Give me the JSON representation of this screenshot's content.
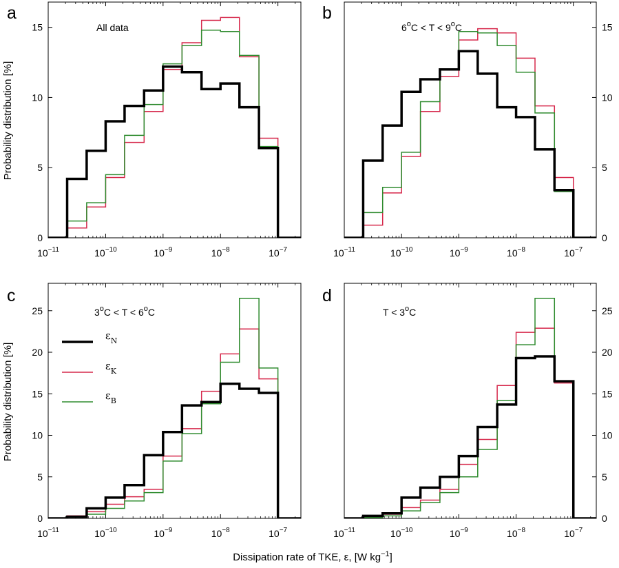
{
  "figure": {
    "xlabel_main": "Dissipation rate of TKE, ε, [W kg",
    "xlabel_exp": "−1",
    "xlabel_close": "]",
    "ylabel": "Probability distribution [%]"
  },
  "legend": {
    "entries": [
      {
        "symbol": "ε",
        "sub": "N",
        "color": "#000000"
      },
      {
        "symbol": "ε",
        "sub": "K",
        "color": "#d6284b"
      },
      {
        "symbol": "ε",
        "sub": "B",
        "color": "#2e8b2e"
      }
    ]
  },
  "chart_data": [
    {
      "type": "histogram-step",
      "panel": "a",
      "annotation": {
        "parts": [
          {
            "t": "All data"
          }
        ]
      },
      "x_scale": "log",
      "xlim_log10": [
        -11,
        -6.6
      ],
      "ylim": [
        0,
        16.8
      ],
      "yticks": [
        0,
        5,
        10,
        15
      ],
      "xticks_log10": [
        -11,
        -10,
        -9,
        -8,
        -7
      ],
      "ytick_side": "left",
      "bin_edges_log10": [
        -11,
        -10.67,
        -10.33,
        -10,
        -9.67,
        -9.33,
        -9,
        -8.67,
        -8.33,
        -8,
        -7.67,
        -7.33,
        -7,
        -6.67,
        -6.33
      ],
      "series": [
        {
          "key": "N",
          "values": [
            0,
            4.2,
            6.2,
            8.3,
            9.4,
            10.5,
            12.2,
            11.8,
            10.6,
            11.0,
            9.3,
            6.4,
            0,
            0
          ]
        },
        {
          "key": "K",
          "values": [
            0,
            0.7,
            2.2,
            4.3,
            6.8,
            9.0,
            12.0,
            13.9,
            15.5,
            15.7,
            12.9,
            7.1,
            0,
            0
          ]
        },
        {
          "key": "B",
          "values": [
            0,
            1.2,
            2.5,
            4.5,
            7.3,
            9.5,
            12.4,
            13.7,
            14.8,
            14.7,
            13.0,
            6.5,
            0,
            0
          ]
        }
      ]
    },
    {
      "type": "histogram-step",
      "panel": "b",
      "annotation": {
        "parts": [
          {
            "t": "6"
          },
          {
            "t": "o",
            "sup": true
          },
          {
            "t": "C < T < 9"
          },
          {
            "t": "o",
            "sup": true
          },
          {
            "t": "C"
          }
        ]
      },
      "x_scale": "log",
      "xlim_log10": [
        -11,
        -6.6
      ],
      "ylim": [
        0,
        16.8
      ],
      "yticks": [
        0,
        5,
        10,
        15
      ],
      "xticks_log10": [
        -11,
        -10,
        -9,
        -8,
        -7
      ],
      "ytick_side": "right",
      "bin_edges_log10": [
        -11,
        -10.67,
        -10.33,
        -10,
        -9.67,
        -9.33,
        -9,
        -8.67,
        -8.33,
        -8,
        -7.67,
        -7.33,
        -7,
        -6.67,
        -6.33
      ],
      "series": [
        {
          "key": "N",
          "values": [
            0,
            5.5,
            8.0,
            10.4,
            11.3,
            12.0,
            13.3,
            11.7,
            9.3,
            8.6,
            6.3,
            3.4,
            0,
            0
          ]
        },
        {
          "key": "K",
          "values": [
            0,
            0.9,
            3.2,
            5.8,
            9.0,
            11.5,
            14.1,
            14.9,
            14.6,
            12.8,
            9.4,
            4.3,
            0,
            0
          ]
        },
        {
          "key": "B",
          "values": [
            0,
            1.8,
            3.6,
            6.1,
            9.7,
            12.0,
            14.7,
            14.6,
            13.7,
            11.8,
            8.9,
            3.3,
            0,
            0
          ]
        }
      ]
    },
    {
      "type": "histogram-step",
      "panel": "c",
      "annotation": {
        "parts": [
          {
            "t": "3"
          },
          {
            "t": "o",
            "sup": true
          },
          {
            "t": "C < T < 6"
          },
          {
            "t": "o",
            "sup": true
          },
          {
            "t": "C"
          }
        ]
      },
      "x_scale": "log",
      "xlim_log10": [
        -11,
        -6.6
      ],
      "ylim": [
        0,
        28.3
      ],
      "yticks": [
        0,
        5,
        10,
        15,
        20,
        25
      ],
      "xticks_log10": [
        -11,
        -10,
        -9,
        -8,
        -7
      ],
      "ytick_side": "left",
      "show_legend": true,
      "bin_edges_log10": [
        -11,
        -10.67,
        -10.33,
        -10,
        -9.67,
        -9.33,
        -9,
        -8.67,
        -8.33,
        -8,
        -7.67,
        -7.33,
        -7,
        -6.67,
        -6.33
      ],
      "series": [
        {
          "key": "N",
          "values": [
            0,
            0.2,
            1.2,
            2.5,
            4.0,
            7.6,
            10.4,
            13.6,
            14.0,
            16.2,
            15.6,
            15.1,
            0,
            0
          ]
        },
        {
          "key": "K",
          "values": [
            0,
            0.3,
            0.8,
            1.7,
            2.6,
            3.5,
            7.5,
            10.8,
            15.3,
            19.8,
            22.8,
            16.8,
            0,
            0
          ]
        },
        {
          "key": "B",
          "values": [
            0,
            0.2,
            0.5,
            1.2,
            2.1,
            3.1,
            6.9,
            10.2,
            13.8,
            18.8,
            26.5,
            18.1,
            0,
            0
          ]
        }
      ]
    },
    {
      "type": "histogram-step",
      "panel": "d",
      "annotation": {
        "parts": [
          {
            "t": "T < 3"
          },
          {
            "t": "o",
            "sup": true
          },
          {
            "t": "C"
          }
        ]
      },
      "x_scale": "log",
      "xlim_log10": [
        -11,
        -6.6
      ],
      "ylim": [
        0,
        28.3
      ],
      "yticks": [
        0,
        5,
        10,
        15,
        20,
        25
      ],
      "xticks_log10": [
        -11,
        -10,
        -9,
        -8,
        -7
      ],
      "ytick_side": "right",
      "bin_edges_log10": [
        -11,
        -10.67,
        -10.33,
        -10,
        -9.67,
        -9.33,
        -9,
        -8.67,
        -8.33,
        -8,
        -7.67,
        -7.33,
        -7,
        -6.67,
        -6.33
      ],
      "series": [
        {
          "key": "N",
          "values": [
            0,
            0.3,
            0.6,
            2.5,
            3.7,
            5.0,
            7.5,
            11.0,
            13.7,
            19.3,
            19.5,
            16.5,
            0,
            0
          ]
        },
        {
          "key": "K",
          "values": [
            0,
            0.2,
            0.5,
            1.3,
            2.2,
            3.5,
            6.5,
            9.5,
            16.0,
            22.4,
            22.9,
            16.3,
            0,
            0
          ]
        },
        {
          "key": "B",
          "values": [
            0,
            0.1,
            0.3,
            0.9,
            1.9,
            3.1,
            5.0,
            8.3,
            14.2,
            20.9,
            26.5,
            16.5,
            0,
            0
          ]
        }
      ]
    }
  ]
}
